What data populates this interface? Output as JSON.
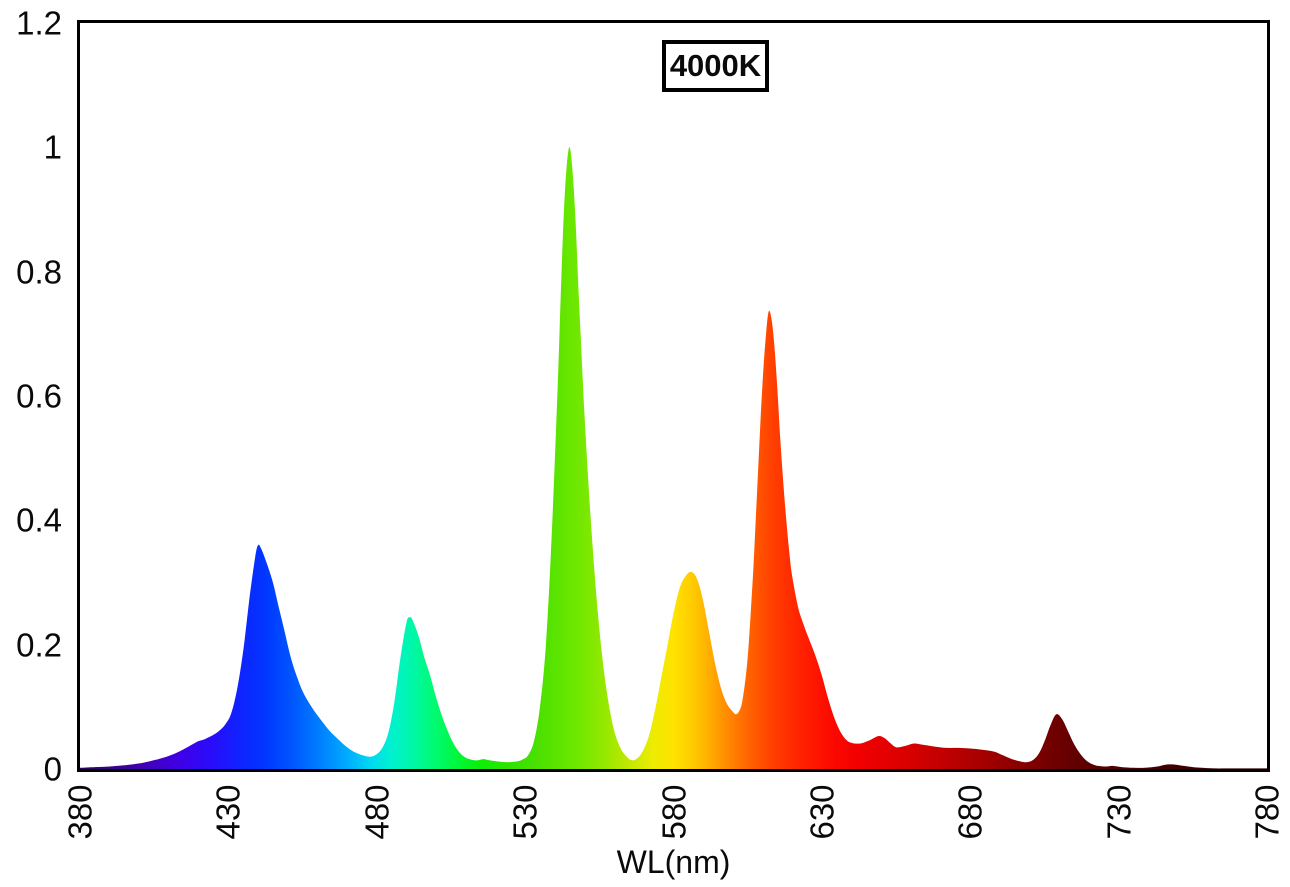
{
  "title_box": {
    "label": "4000K"
  },
  "axes": {
    "x": {
      "title": "WL(nm)",
      "min": 380,
      "max": 780,
      "ticks": [
        "380",
        "430",
        "480",
        "530",
        "580",
        "630",
        "680",
        "730",
        "780"
      ]
    },
    "y": {
      "min": 0,
      "max": 1.2,
      "ticks": [
        "0",
        "0.2",
        "0.4",
        "0.6",
        "0.8",
        "1",
        "1.2"
      ]
    }
  },
  "colors": {
    "background": "#ffffff",
    "axis": "#000000",
    "text": "#0a0a0a"
  },
  "chart_data": {
    "type": "area",
    "title": "4000K",
    "xlabel": "WL(nm)",
    "ylabel": "",
    "xlim": [
      380,
      780
    ],
    "ylim": [
      0,
      1.2
    ],
    "grid": false,
    "legend": "none",
    "description": "LED spectral power distribution at 4000K; area fill colored by visible-spectrum wavelength gradient. Peaks: blue ~440nm (0.36), cyan-green ~491nm (0.24), green spike ~545nm (1.00), amber ~586nm (0.32), red ~612nm (0.73), far-red ~709nm (0.09).",
    "series": [
      {
        "name": "4000K spectral power distribution",
        "points": [
          [
            380,
            0.002
          ],
          [
            385,
            0.003
          ],
          [
            390,
            0.004
          ],
          [
            395,
            0.006
          ],
          [
            400,
            0.009
          ],
          [
            404,
            0.013
          ],
          [
            408,
            0.018
          ],
          [
            412,
            0.025
          ],
          [
            415,
            0.032
          ],
          [
            418,
            0.04
          ],
          [
            420,
            0.045
          ],
          [
            422,
            0.048
          ],
          [
            425,
            0.055
          ],
          [
            427,
            0.062
          ],
          [
            429,
            0.072
          ],
          [
            431,
            0.09
          ],
          [
            433,
            0.13
          ],
          [
            435,
            0.19
          ],
          [
            437,
            0.27
          ],
          [
            439,
            0.34
          ],
          [
            440,
            0.36
          ],
          [
            441,
            0.355
          ],
          [
            443,
            0.33
          ],
          [
            445,
            0.3
          ],
          [
            447,
            0.26
          ],
          [
            449,
            0.22
          ],
          [
            451,
            0.18
          ],
          [
            453,
            0.15
          ],
          [
            455,
            0.125
          ],
          [
            458,
            0.1
          ],
          [
            461,
            0.08
          ],
          [
            464,
            0.062
          ],
          [
            467,
            0.048
          ],
          [
            470,
            0.035
          ],
          [
            473,
            0.026
          ],
          [
            476,
            0.021
          ],
          [
            478,
            0.02
          ],
          [
            480,
            0.024
          ],
          [
            482,
            0.035
          ],
          [
            484,
            0.06
          ],
          [
            486,
            0.11
          ],
          [
            488,
            0.18
          ],
          [
            490,
            0.235
          ],
          [
            491,
            0.244
          ],
          [
            492,
            0.24
          ],
          [
            494,
            0.215
          ],
          [
            496,
            0.18
          ],
          [
            498,
            0.15
          ],
          [
            500,
            0.115
          ],
          [
            502,
            0.085
          ],
          [
            504,
            0.06
          ],
          [
            506,
            0.04
          ],
          [
            508,
            0.026
          ],
          [
            510,
            0.018
          ],
          [
            512,
            0.015
          ],
          [
            514,
            0.014
          ],
          [
            516,
            0.016
          ],
          [
            518,
            0.014
          ],
          [
            521,
            0.012
          ],
          [
            524,
            0.011
          ],
          [
            527,
            0.012
          ],
          [
            529,
            0.015
          ],
          [
            531,
            0.022
          ],
          [
            533,
            0.045
          ],
          [
            535,
            0.1
          ],
          [
            537,
            0.2
          ],
          [
            539,
            0.38
          ],
          [
            541,
            0.62
          ],
          [
            542,
            0.76
          ],
          [
            543,
            0.89
          ],
          [
            544,
            0.97
          ],
          [
            545,
            1.0
          ],
          [
            546,
            0.96
          ],
          [
            547,
            0.88
          ],
          [
            548,
            0.77
          ],
          [
            549,
            0.67
          ],
          [
            550,
            0.57
          ],
          [
            552,
            0.41
          ],
          [
            554,
            0.28
          ],
          [
            556,
            0.18
          ],
          [
            558,
            0.11
          ],
          [
            560,
            0.062
          ],
          [
            562,
            0.035
          ],
          [
            564,
            0.021
          ],
          [
            566,
            0.014
          ],
          [
            568,
            0.018
          ],
          [
            570,
            0.032
          ],
          [
            572,
            0.058
          ],
          [
            574,
            0.1
          ],
          [
            576,
            0.15
          ],
          [
            578,
            0.2
          ],
          [
            580,
            0.25
          ],
          [
            582,
            0.29
          ],
          [
            584,
            0.31
          ],
          [
            586,
            0.317
          ],
          [
            588,
            0.305
          ],
          [
            590,
            0.27
          ],
          [
            592,
            0.22
          ],
          [
            594,
            0.17
          ],
          [
            596,
            0.13
          ],
          [
            598,
            0.105
          ],
          [
            600,
            0.092
          ],
          [
            601,
            0.088
          ],
          [
            602,
            0.092
          ],
          [
            603,
            0.105
          ],
          [
            604,
            0.135
          ],
          [
            605,
            0.18
          ],
          [
            606,
            0.25
          ],
          [
            607,
            0.33
          ],
          [
            608,
            0.43
          ],
          [
            609,
            0.53
          ],
          [
            610,
            0.62
          ],
          [
            611,
            0.69
          ],
          [
            612,
            0.735
          ],
          [
            613,
            0.725
          ],
          [
            614,
            0.68
          ],
          [
            615,
            0.61
          ],
          [
            616,
            0.53
          ],
          [
            617,
            0.46
          ],
          [
            618,
            0.4
          ],
          [
            619,
            0.35
          ],
          [
            620,
            0.31
          ],
          [
            622,
            0.26
          ],
          [
            624,
            0.23
          ],
          [
            626,
            0.205
          ],
          [
            628,
            0.18
          ],
          [
            630,
            0.15
          ],
          [
            632,
            0.115
          ],
          [
            634,
            0.085
          ],
          [
            636,
            0.062
          ],
          [
            638,
            0.048
          ],
          [
            640,
            0.042
          ],
          [
            643,
            0.041
          ],
          [
            646,
            0.046
          ],
          [
            649,
            0.053
          ],
          [
            651,
            0.05
          ],
          [
            653,
            0.042
          ],
          [
            655,
            0.035
          ],
          [
            658,
            0.037
          ],
          [
            661,
            0.041
          ],
          [
            664,
            0.039
          ],
          [
            668,
            0.036
          ],
          [
            672,
            0.034
          ],
          [
            676,
            0.034
          ],
          [
            680,
            0.033
          ],
          [
            684,
            0.031
          ],
          [
            688,
            0.028
          ],
          [
            691,
            0.022
          ],
          [
            694,
            0.016
          ],
          [
            697,
            0.012
          ],
          [
            699,
            0.011
          ],
          [
            701,
            0.014
          ],
          [
            703,
            0.024
          ],
          [
            705,
            0.044
          ],
          [
            707,
            0.07
          ],
          [
            709,
            0.088
          ],
          [
            711,
            0.08
          ],
          [
            713,
            0.06
          ],
          [
            715,
            0.04
          ],
          [
            717,
            0.025
          ],
          [
            719,
            0.014
          ],
          [
            721,
            0.008
          ],
          [
            723,
            0.005
          ],
          [
            726,
            0.004
          ],
          [
            728,
            0.005
          ],
          [
            731,
            0.003
          ],
          [
            735,
            0.002
          ],
          [
            739,
            0.002
          ],
          [
            743,
            0.004
          ],
          [
            746,
            0.007
          ],
          [
            749,
            0.007
          ],
          [
            752,
            0.005
          ],
          [
            755,
            0.003
          ],
          [
            758,
            0.002
          ],
          [
            762,
            0.001
          ],
          [
            768,
            0.001
          ],
          [
            774,
            0.001
          ],
          [
            780,
            0.001
          ]
        ]
      }
    ],
    "spectral_gradient_stops": [
      [
        380,
        "#30005c"
      ],
      [
        392,
        "#3b0090"
      ],
      [
        404,
        "#4200c0"
      ],
      [
        414,
        "#3f00e8"
      ],
      [
        424,
        "#2a0cfa"
      ],
      [
        434,
        "#0f23ff"
      ],
      [
        443,
        "#0038ff"
      ],
      [
        452,
        "#0058ff"
      ],
      [
        461,
        "#0080ff"
      ],
      [
        470,
        "#00abff"
      ],
      [
        478,
        "#00d9f2"
      ],
      [
        485,
        "#00f2cf"
      ],
      [
        492,
        "#00f7a8"
      ],
      [
        499,
        "#00fa75"
      ],
      [
        507,
        "#00f73d"
      ],
      [
        515,
        "#0cee08"
      ],
      [
        524,
        "#2ce300"
      ],
      [
        533,
        "#48e000"
      ],
      [
        541,
        "#5ce400"
      ],
      [
        549,
        "#74e800"
      ],
      [
        557,
        "#96e800"
      ],
      [
        565,
        "#c2e800"
      ],
      [
        573,
        "#ecec00"
      ],
      [
        580,
        "#ffe300"
      ],
      [
        587,
        "#ffc800"
      ],
      [
        594,
        "#ffa300"
      ],
      [
        600,
        "#ff8000"
      ],
      [
        606,
        "#ff6000"
      ],
      [
        612,
        "#ff4500"
      ],
      [
        618,
        "#ff3000"
      ],
      [
        625,
        "#ff1c00"
      ],
      [
        633,
        "#fc0a00"
      ],
      [
        642,
        "#f20000"
      ],
      [
        652,
        "#e40000"
      ],
      [
        662,
        "#d30000"
      ],
      [
        672,
        "#bf0000"
      ],
      [
        682,
        "#aa0000"
      ],
      [
        692,
        "#930000"
      ],
      [
        702,
        "#7d0000"
      ],
      [
        712,
        "#680000"
      ],
      [
        724,
        "#540000"
      ],
      [
        738,
        "#460000"
      ],
      [
        754,
        "#3a0000"
      ],
      [
        780,
        "#310000"
      ]
    ]
  }
}
